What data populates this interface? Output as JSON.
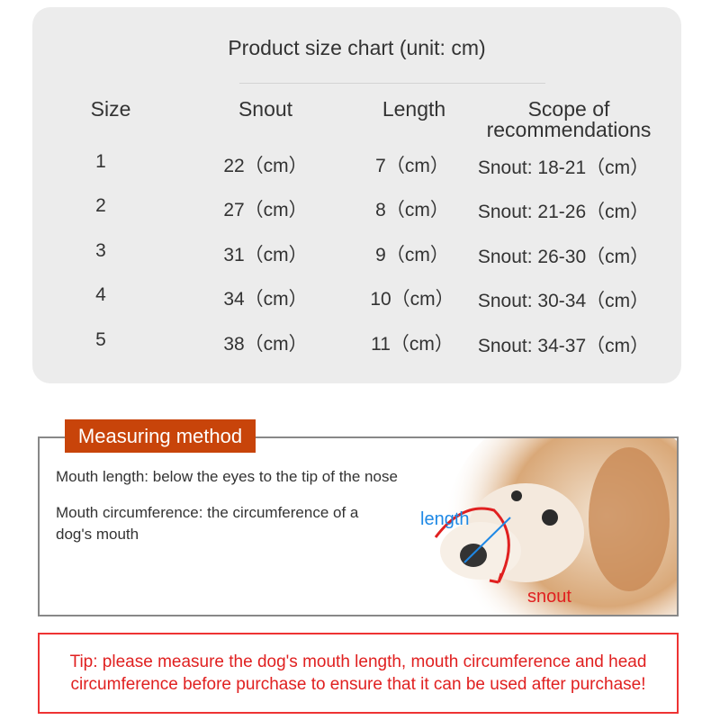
{
  "size_chart": {
    "title": "Product size chart (unit: cm)",
    "headers": [
      "Size",
      "Snout",
      "Length",
      "Scope of recommendations"
    ],
    "rows": [
      [
        "1",
        "22（cm）",
        "7（cm）",
        "Snout: 18-21（cm）"
      ],
      [
        "2",
        "27（cm）",
        "8（cm）",
        "Snout: 21-26（cm）"
      ],
      [
        "3",
        "31（cm）",
        "9（cm）",
        "Snout: 26-30（cm）"
      ],
      [
        "4",
        "34（cm）",
        "10（cm）",
        "Snout: 30-34（cm）"
      ],
      [
        "5",
        "38（cm）",
        "11（cm）",
        "Snout: 34-37（cm）"
      ]
    ]
  },
  "measuring": {
    "label": "Measuring method",
    "line1": "Mouth length: below the eyes to the tip of the nose",
    "line2": "Mouth circumference: the circumference of a dog's mouth",
    "length_label": "length",
    "snout_label": "snout",
    "colors": {
      "label_bg": "#c8440a",
      "length": "#1e88e5",
      "snout": "#e02020"
    }
  },
  "tip": "Tip: please measure the dog's mouth length, mouth circumference and head circumference before purchase to ensure that it can be used after purchase!"
}
